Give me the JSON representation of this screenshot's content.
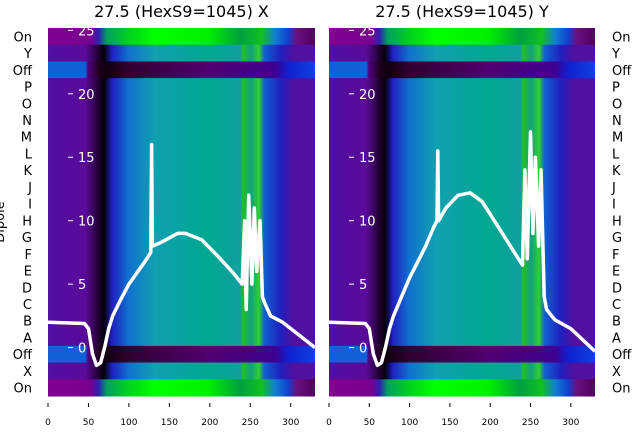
{
  "chart_data": [
    {
      "type": "heatmap",
      "title": "27.5 (HexS9=1045) X",
      "ylabel": "Dipole",
      "rows": [
        "On",
        "Y",
        "Off",
        "P",
        "O",
        "N",
        "M",
        "L",
        "K",
        "J",
        "I",
        "H",
        "G",
        "F",
        "E",
        "D",
        "C",
        "B",
        "A",
        "Off",
        "X",
        "On"
      ],
      "xticks": [
        0,
        50,
        100,
        150,
        200,
        250,
        300
      ],
      "xlim": [
        0,
        330
      ],
      "overlay_yticks": [
        0,
        5,
        10,
        15,
        20,
        25
      ],
      "overlay_ylim": [
        -3.5,
        25.5
      ],
      "overlay_line": {
        "x": [
          0,
          45,
          50,
          55,
          60,
          65,
          70,
          75,
          80,
          90,
          100,
          120,
          127,
          128,
          129,
          140,
          160,
          170,
          190,
          210,
          230,
          240,
          243,
          245,
          248,
          252,
          255,
          258,
          262,
          265,
          268,
          275,
          290,
          310,
          330
        ],
        "y": [
          2,
          1.9,
          1.5,
          -0.5,
          -1.4,
          -1.2,
          0,
          1.5,
          2.5,
          3.8,
          5,
          6.8,
          7.5,
          16,
          8,
          8.3,
          9,
          9,
          8.5,
          7.2,
          5.8,
          5,
          10,
          3,
          12,
          5,
          11,
          6,
          10,
          4,
          3.5,
          2.5,
          2,
          1,
          0
        ]
      }
    },
    {
      "type": "heatmap",
      "title": "27.5 (HexS9=1045) Y",
      "rows": [
        "On",
        "Y",
        "Off",
        "P",
        "O",
        "N",
        "M",
        "L",
        "K",
        "J",
        "I",
        "H",
        "G",
        "F",
        "E",
        "D",
        "C",
        "B",
        "A",
        "Off",
        "X",
        "On"
      ],
      "xticks": [
        0,
        50,
        100,
        150,
        200,
        250,
        300
      ],
      "xlim": [
        0,
        330
      ],
      "overlay_yticks": [
        0,
        5,
        10,
        15,
        20,
        25
      ],
      "overlay_ylim": [
        -3.5,
        25.5
      ],
      "overlay_line": {
        "x": [
          0,
          45,
          50,
          55,
          60,
          65,
          70,
          75,
          80,
          90,
          100,
          120,
          130,
          134,
          135,
          136,
          145,
          160,
          175,
          190,
          210,
          230,
          240,
          243,
          246,
          250,
          253,
          256,
          260,
          263,
          267,
          270,
          280,
          300,
          330
        ],
        "y": [
          2,
          1.9,
          1.5,
          -0.5,
          -1.4,
          -1.2,
          0,
          1.5,
          2.5,
          4,
          5.5,
          8,
          9.5,
          10,
          15.5,
          10,
          11,
          12,
          12.2,
          11.5,
          9.5,
          7.5,
          6.5,
          14,
          7,
          17,
          9,
          15,
          8,
          14,
          4,
          3,
          2.2,
          1.5,
          -0.3
        ]
      }
    }
  ]
}
